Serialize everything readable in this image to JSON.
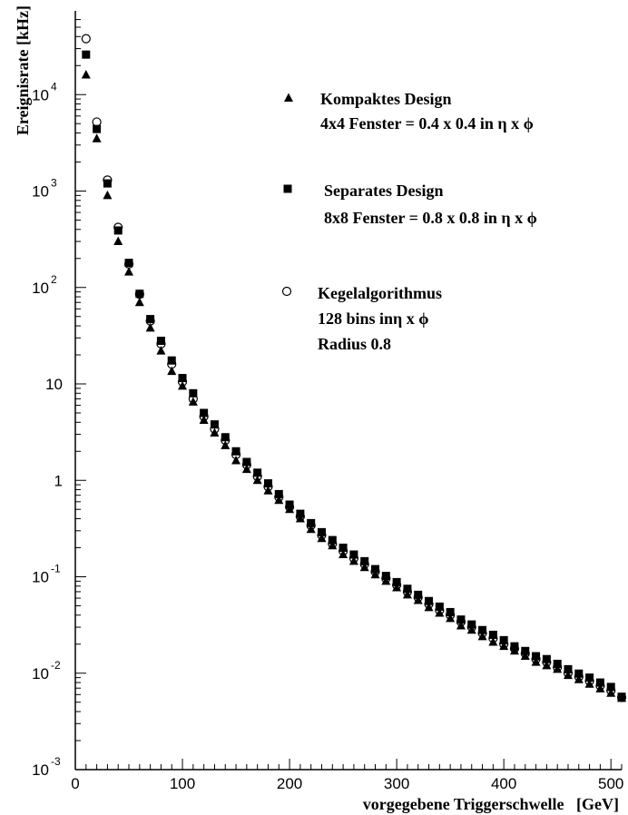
{
  "chart_data": {
    "type": "scatter",
    "title": "",
    "xlabel": "vorgegebene Triggerschwelle   [GeV]",
    "ylabel": "Ereignisrate [kHz]",
    "xlim": [
      0,
      510
    ],
    "ylim": [
      0.001,
      60000
    ],
    "yscale": "log",
    "grid": false,
    "legend_position": "top-right",
    "x_ticks": [
      "0",
      "100",
      "200",
      "300",
      "400",
      "500"
    ],
    "y_ticks": [
      {
        "base": "10",
        "exp": "-3"
      },
      {
        "base": "10",
        "exp": "-2"
      },
      {
        "base": "10",
        "exp": "-1"
      },
      {
        "base": "1",
        "exp": ""
      },
      {
        "base": "10",
        "exp": ""
      },
      {
        "base": "10",
        "exp": "2"
      },
      {
        "base": "10",
        "exp": "3"
      },
      {
        "base": "10",
        "exp": "4"
      }
    ],
    "x": [
      10,
      20,
      30,
      40,
      50,
      60,
      70,
      80,
      90,
      100,
      110,
      120,
      130,
      140,
      150,
      160,
      170,
      180,
      190,
      200,
      210,
      220,
      230,
      240,
      250,
      260,
      270,
      280,
      290,
      300,
      310,
      320,
      330,
      340,
      350,
      360,
      370,
      380,
      390,
      400,
      410,
      420,
      430,
      440,
      450,
      460,
      470,
      480,
      490,
      500,
      510
    ],
    "series": [
      {
        "name": "Kompaktes Design",
        "marker": "triangle",
        "legend_lines": [
          "Kompaktes Design",
          "4x4 Fenster = 0.4 x 0.4 in η x ϕ"
        ],
        "values": [
          16000,
          3500,
          900,
          300,
          145,
          70,
          38,
          22,
          13.5,
          9.5,
          6.5,
          4.2,
          3.1,
          2.3,
          1.6,
          1.3,
          1.0,
          0.78,
          0.62,
          0.5,
          0.4,
          0.31,
          0.25,
          0.21,
          0.17,
          0.145,
          0.125,
          0.105,
          0.09,
          0.077,
          0.065,
          0.057,
          0.048,
          0.042,
          0.037,
          0.031,
          0.028,
          0.024,
          0.021,
          0.019,
          0.017,
          0.015,
          0.013,
          0.012,
          0.011,
          0.0095,
          0.0086,
          0.0077,
          0.0069,
          0.0062,
          0.0055
        ]
      },
      {
        "name": "Separates Design",
        "marker": "square",
        "legend_lines": [
          "Separates Design",
          "8x8 Fenster = 0.8 x 0.8 in η x ϕ"
        ],
        "values": [
          26000,
          4400,
          1200,
          390,
          180,
          86,
          47,
          28,
          17.5,
          11.5,
          8.0,
          5.0,
          3.8,
          2.8,
          2.0,
          1.55,
          1.2,
          0.93,
          0.72,
          0.56,
          0.45,
          0.36,
          0.29,
          0.24,
          0.2,
          0.17,
          0.145,
          0.12,
          0.102,
          0.088,
          0.075,
          0.065,
          0.056,
          0.049,
          0.043,
          0.036,
          0.032,
          0.028,
          0.025,
          0.022,
          0.019,
          0.017,
          0.015,
          0.014,
          0.0125,
          0.011,
          0.0099,
          0.009,
          0.008,
          0.0072,
          0.0057
        ]
      },
      {
        "name": "Kegelalgorithmus",
        "marker": "open-circle",
        "legend_lines": [
          "Kegelalgorithmus",
          "128 bins inη x ϕ",
          "Radius 0.8"
        ],
        "values": [
          38000,
          5200,
          1300,
          420,
          175,
          85,
          45,
          26,
          16,
          10.5,
          7.0,
          4.6,
          3.4,
          2.6,
          1.85,
          1.45,
          1.1,
          0.86,
          0.67,
          0.53,
          0.42,
          0.34,
          0.27,
          0.22,
          0.185,
          0.155,
          0.135,
          0.113,
          0.096,
          0.082,
          0.07,
          0.061,
          0.052,
          0.045,
          0.04,
          0.034,
          0.03,
          0.026,
          0.023,
          0.02,
          0.018,
          0.016,
          0.014,
          0.013,
          0.0115,
          0.01,
          0.0092,
          0.0083,
          0.0074,
          0.0066,
          0.0056
        ]
      }
    ]
  }
}
